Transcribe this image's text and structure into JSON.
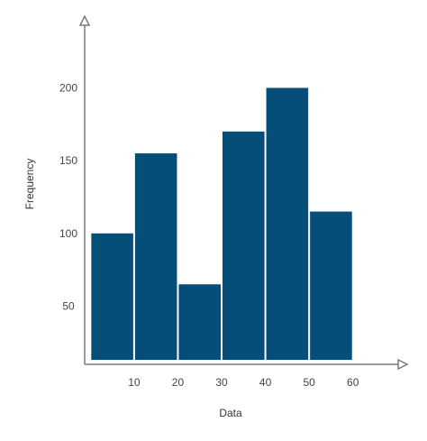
{
  "chart_data": {
    "type": "bar",
    "title": "",
    "xlabel": "Data",
    "ylabel": "Frequency",
    "bins": [
      {
        "start": 0,
        "end": 10,
        "value": 100
      },
      {
        "start": 10,
        "end": 20,
        "value": 155
      },
      {
        "start": 20,
        "end": 30,
        "value": 65
      },
      {
        "start": 30,
        "end": 40,
        "value": 170
      },
      {
        "start": 40,
        "end": 50,
        "value": 200
      },
      {
        "start": 50,
        "end": 60,
        "value": 115
      }
    ],
    "x_ticks": [
      10,
      20,
      30,
      40,
      50,
      60
    ],
    "y_ticks": [
      50,
      100,
      150,
      200
    ],
    "xlim": [
      -1.3,
      72
    ],
    "ylim": [
      10,
      248
    ],
    "grid": false,
    "legend": "none",
    "bar_color": "#064e7a",
    "axis_color": "#7a7a7a"
  }
}
